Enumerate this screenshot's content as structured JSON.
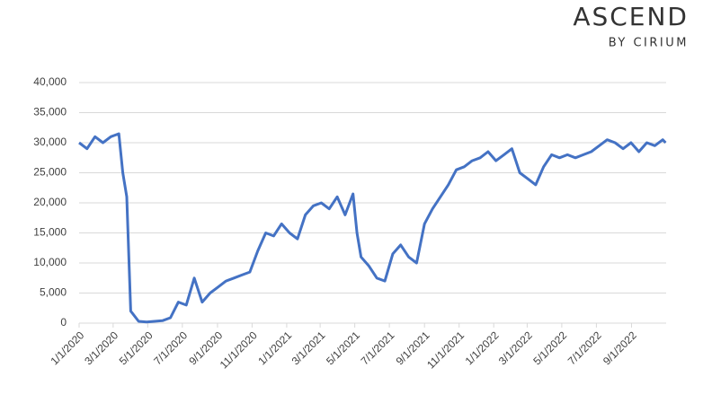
{
  "logo": {
    "name": "ASCEND",
    "tagline": "BY CIRIUM"
  },
  "chart_data": {
    "type": "line",
    "x": [
      "1/1/2020",
      "1/15/2020",
      "1/29/2020",
      "2/12/2020",
      "2/26/2020",
      "3/11/2020",
      "3/18/2020",
      "3/25/2020",
      "4/1/2020",
      "4/15/2020",
      "4/29/2020",
      "5/13/2020",
      "5/27/2020",
      "6/10/2020",
      "6/24/2020",
      "7/8/2020",
      "7/22/2020",
      "8/5/2020",
      "8/19/2020",
      "9/2/2020",
      "9/16/2020",
      "9/30/2020",
      "10/14/2020",
      "10/28/2020",
      "11/11/2020",
      "11/25/2020",
      "12/9/2020",
      "12/23/2020",
      "1/6/2021",
      "1/20/2021",
      "2/3/2021",
      "2/17/2021",
      "3/3/2021",
      "3/17/2021",
      "3/31/2021",
      "4/14/2021",
      "4/28/2021",
      "5/5/2021",
      "5/12/2021",
      "5/26/2021",
      "6/9/2021",
      "6/23/2021",
      "7/7/2021",
      "7/21/2021",
      "8/4/2021",
      "8/18/2021",
      "9/1/2021",
      "9/15/2021",
      "9/29/2021",
      "10/13/2021",
      "10/27/2021",
      "11/10/2021",
      "11/24/2021",
      "12/8/2021",
      "12/22/2021",
      "1/5/2022",
      "1/19/2022",
      "2/2/2022",
      "2/16/2022",
      "3/2/2022",
      "3/16/2022",
      "3/30/2022",
      "4/13/2022",
      "4/27/2022",
      "5/11/2022",
      "5/25/2022",
      "6/8/2022",
      "6/22/2022",
      "7/6/2022",
      "7/20/2022",
      "8/3/2022",
      "8/17/2022",
      "8/31/2022",
      "9/14/2022",
      "9/28/2022",
      "10/12/2022",
      "10/26/2022",
      "10/31/2022"
    ],
    "series": [
      {
        "color": "#4472c4",
        "values": [
          30000,
          29000,
          31000,
          30000,
          31000,
          31500,
          25000,
          21000,
          2000,
          300,
          200,
          300,
          400,
          900,
          3500,
          3000,
          7500,
          3500,
          5000,
          6000,
          7000,
          7500,
          8000,
          8500,
          12000,
          15000,
          14500,
          16500,
          15000,
          14000,
          18000,
          19500,
          20000,
          19000,
          21000,
          18000,
          21500,
          15000,
          11000,
          9500,
          7500,
          7000,
          11500,
          13000,
          11000,
          10000,
          16500,
          19000,
          21000,
          23000,
          25500,
          26000,
          27000,
          27500,
          28500,
          27000,
          28000,
          29000,
          25000,
          24000,
          23000,
          26000,
          28000,
          27500,
          28000,
          27500,
          28000,
          28500,
          29500,
          30500,
          30000,
          29000,
          30000,
          28500,
          30000,
          29500,
          30500,
          30000
        ]
      }
    ],
    "xlim": [
      "1/1/2020",
      "11/1/2022"
    ],
    "xticks": [
      "1/1/2020",
      "3/1/2020",
      "5/1/2020",
      "7/1/2020",
      "9/1/2020",
      "11/1/2020",
      "1/1/2021",
      "3/1/2021",
      "5/1/2021",
      "7/1/2021",
      "9/1/2021",
      "11/1/2021",
      "1/1/2022",
      "3/1/2022",
      "5/1/2022",
      "7/1/2022",
      "9/1/2022"
    ],
    "ylim": [
      0,
      40000
    ],
    "yticks": [
      0,
      {
        "value": 5000,
        "label": "5,000"
      },
      {
        "value": 10000,
        "label": "10,000"
      },
      {
        "value": 15000,
        "label": "15,000"
      },
      {
        "value": 20000,
        "label": "20,000"
      },
      {
        "value": 25000,
        "label": "25,000"
      },
      {
        "value": 30000,
        "label": "30,000"
      },
      {
        "value": 35000,
        "label": "35,000"
      },
      {
        "value": 40000,
        "label": "40,000"
      }
    ],
    "grid": true
  }
}
